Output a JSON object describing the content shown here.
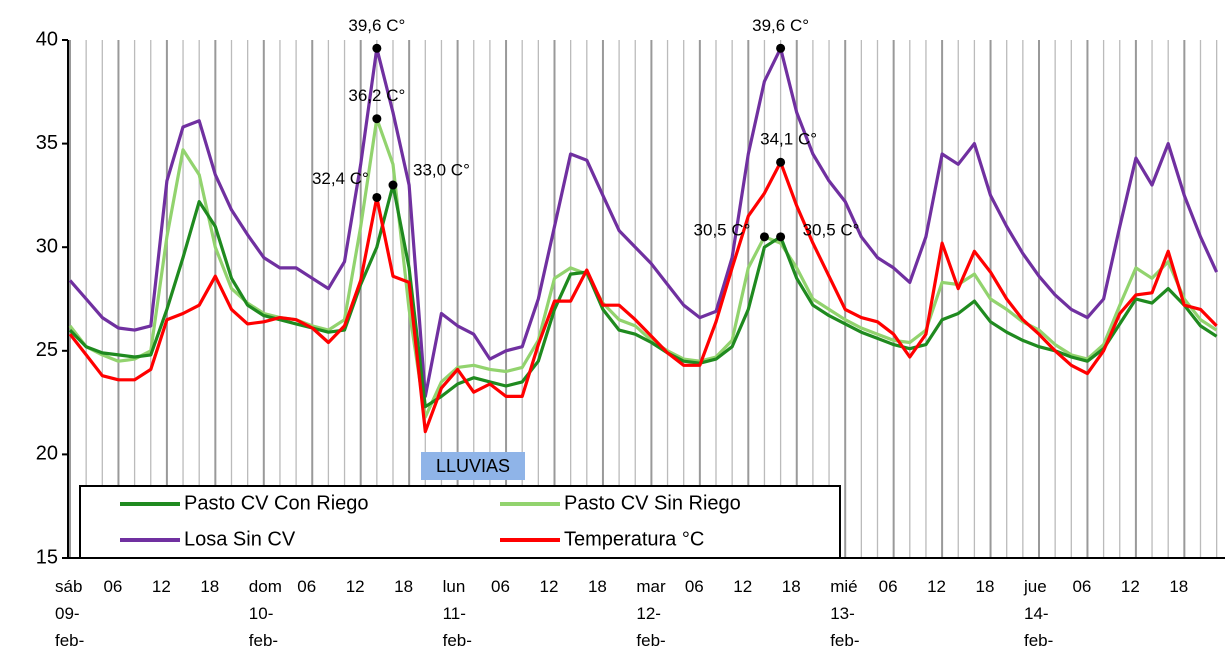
{
  "chart_data": {
    "type": "line",
    "categories": [
      "sáb 09- feb-",
      null,
      null,
      "06",
      null,
      null,
      "12",
      null,
      null,
      "18",
      null,
      null,
      "dom 10- feb-",
      null,
      null,
      "06",
      null,
      null,
      "12",
      null,
      null,
      "18",
      null,
      null,
      "lun 11- feb-",
      null,
      null,
      "06",
      null,
      null,
      "12",
      null,
      null,
      "18",
      null,
      null,
      "mar 12- feb-",
      null,
      null,
      "06",
      null,
      null,
      "12",
      null,
      null,
      "18",
      null,
      null,
      "mié 13- feb-",
      null,
      null,
      "06",
      null,
      null,
      "12",
      null,
      null,
      "18",
      null,
      null,
      "jue 14- feb-",
      null,
      null,
      "06",
      null,
      null,
      "12",
      null,
      null,
      "18",
      null,
      null
    ],
    "series": [
      {
        "name": "Pasto CV Con Riego",
        "color": "#1f8a1f",
        "values": [
          26.0,
          25.2,
          24.9,
          24.8,
          24.7,
          24.8,
          27.0,
          29.5,
          32.2,
          31.0,
          28.5,
          27.2,
          26.7,
          26.5,
          26.3,
          26.1,
          25.9,
          26.0,
          28.2,
          30.0,
          33.0,
          29.0,
          22.3,
          22.8,
          23.4,
          23.7,
          23.5,
          23.3,
          23.5,
          24.5,
          27.0,
          28.7,
          28.8,
          27.0,
          26.0,
          25.8,
          25.4,
          24.9,
          24.5,
          24.4,
          24.6,
          25.2,
          27.0,
          30.0,
          30.5,
          28.5,
          27.2,
          26.7,
          26.3,
          25.9,
          25.6,
          25.3,
          25.1,
          25.3,
          26.5,
          26.8,
          27.4,
          26.4,
          25.9,
          25.5,
          25.2,
          25.0,
          24.7,
          24.5,
          25.1,
          26.3,
          27.5,
          27.3,
          28.0,
          27.2,
          26.2,
          25.7
        ],
        "value_labels": [
          null,
          null,
          null,
          null,
          null,
          null,
          null,
          null,
          null,
          null,
          null,
          null,
          null,
          null,
          null,
          null,
          null,
          null,
          null,
          null,
          "33,0 C°",
          null,
          null,
          null,
          null,
          null,
          null,
          null,
          null,
          null,
          null,
          null,
          null,
          null,
          null,
          null,
          null,
          null,
          null,
          null,
          null,
          null,
          null,
          null,
          "30,5 C°",
          null,
          null,
          null,
          null,
          null,
          null,
          null,
          null,
          null,
          null,
          null,
          null,
          null,
          null,
          null,
          null,
          null,
          null,
          null,
          null,
          null,
          null,
          null,
          null,
          null,
          null,
          null
        ]
      },
      {
        "name": "Pasto CV Sin Riego",
        "color": "#92d36e",
        "values": [
          26.2,
          25.2,
          24.8,
          24.5,
          24.6,
          25.0,
          30.5,
          34.7,
          33.5,
          30.0,
          28.0,
          27.3,
          26.8,
          26.6,
          26.5,
          26.2,
          26.0,
          26.5,
          31.0,
          36.2,
          34.0,
          27.0,
          21.8,
          23.5,
          24.2,
          24.3,
          24.1,
          24.0,
          24.2,
          25.5,
          28.5,
          29.0,
          28.7,
          27.3,
          26.5,
          26.2,
          25.5,
          25.0,
          24.6,
          24.5,
          24.7,
          25.5,
          29.0,
          30.5,
          30.2,
          29.0,
          27.5,
          27.0,
          26.5,
          26.1,
          25.8,
          25.5,
          25.4,
          26.0,
          28.3,
          28.2,
          28.7,
          27.5,
          27.0,
          26.4,
          26.0,
          25.3,
          24.8,
          24.6,
          25.3,
          27.2,
          29.0,
          28.5,
          29.3,
          27.5,
          26.5,
          26.0
        ],
        "value_labels": [
          null,
          null,
          null,
          null,
          null,
          null,
          null,
          null,
          null,
          null,
          null,
          null,
          null,
          null,
          null,
          null,
          null,
          null,
          null,
          "36,2 C°",
          null,
          null,
          null,
          null,
          null,
          null,
          null,
          null,
          null,
          null,
          null,
          null,
          null,
          null,
          null,
          null,
          null,
          null,
          null,
          null,
          null,
          null,
          null,
          "30,5 C°",
          null,
          null,
          null,
          null,
          null,
          null,
          null,
          null,
          null,
          null,
          null,
          null,
          null,
          null,
          null,
          null,
          null,
          null,
          null,
          null,
          null,
          null,
          null,
          null,
          null,
          null,
          null,
          null
        ]
      },
      {
        "name": "Losa Sin CV",
        "color": "#7030a0",
        "values": [
          28.4,
          27.5,
          26.6,
          26.1,
          26.0,
          26.2,
          33.2,
          35.8,
          36.1,
          33.5,
          31.8,
          30.6,
          29.5,
          29.0,
          29.0,
          28.5,
          28.0,
          29.3,
          34.0,
          39.6,
          36.5,
          33.0,
          22.8,
          26.8,
          26.2,
          25.8,
          24.6,
          25.0,
          25.2,
          27.5,
          31.0,
          34.5,
          34.2,
          32.5,
          30.8,
          30.0,
          29.2,
          28.2,
          27.2,
          26.6,
          26.9,
          29.5,
          34.5,
          38.0,
          39.6,
          36.5,
          34.5,
          33.2,
          32.2,
          30.5,
          29.5,
          29.0,
          28.3,
          30.5,
          34.5,
          34.0,
          35.0,
          32.5,
          31.0,
          29.7,
          28.6,
          27.7,
          27.0,
          26.6,
          27.5,
          31.0,
          34.3,
          33.0,
          35.0,
          32.5,
          30.5,
          28.8
        ],
        "value_labels": [
          null,
          null,
          null,
          null,
          null,
          null,
          null,
          null,
          null,
          null,
          null,
          null,
          null,
          null,
          null,
          null,
          null,
          null,
          null,
          "39,6 C°",
          null,
          null,
          null,
          null,
          null,
          null,
          null,
          null,
          null,
          null,
          null,
          null,
          null,
          null,
          null,
          null,
          null,
          null,
          null,
          null,
          null,
          null,
          null,
          null,
          "39,6 C°",
          null,
          null,
          null,
          null,
          null,
          null,
          null,
          null,
          null,
          null,
          null,
          null,
          null,
          null,
          null,
          null,
          null,
          null,
          null,
          null,
          null,
          null,
          null,
          null,
          null,
          null,
          null
        ]
      },
      {
        "name": "Temperatura °C",
        "color": "#ff0000",
        "values": [
          25.8,
          24.8,
          23.8,
          23.6,
          23.6,
          24.1,
          26.5,
          26.8,
          27.2,
          28.6,
          27.0,
          26.3,
          26.4,
          26.6,
          26.5,
          26.1,
          25.4,
          26.2,
          28.4,
          32.4,
          28.6,
          28.3,
          21.1,
          23.2,
          24.1,
          23.0,
          23.4,
          22.8,
          22.8,
          25.3,
          27.4,
          27.4,
          28.9,
          27.2,
          27.2,
          26.5,
          25.7,
          24.9,
          24.3,
          24.3,
          26.4,
          29.0,
          31.5,
          32.6,
          34.1,
          32.0,
          30.2,
          28.6,
          27.0,
          26.6,
          26.4,
          25.8,
          24.7,
          25.8,
          30.2,
          28.0,
          29.8,
          28.8,
          27.5,
          26.5,
          25.8,
          25.0,
          24.3,
          23.9,
          25.0,
          26.8,
          27.7,
          27.8,
          29.8,
          27.2,
          27.0,
          26.2
        ],
        "value_labels": [
          null,
          null,
          null,
          null,
          null,
          null,
          null,
          null,
          null,
          null,
          null,
          null,
          null,
          null,
          null,
          null,
          null,
          null,
          null,
          "32,4 C°",
          null,
          null,
          null,
          null,
          null,
          null,
          null,
          null,
          null,
          null,
          null,
          null,
          null,
          null,
          null,
          null,
          null,
          null,
          null,
          null,
          null,
          null,
          null,
          null,
          "34,1 C°",
          null,
          null,
          null,
          null,
          null,
          null,
          null,
          null,
          null,
          null,
          null,
          null,
          null,
          null,
          null,
          null,
          null,
          null,
          null,
          null,
          null,
          null,
          null,
          null,
          null,
          null,
          null
        ]
      }
    ],
    "annotations": [
      "LLUVIAS"
    ],
    "ylim": [
      15,
      40
    ],
    "yticks": [
      15,
      20,
      25,
      30,
      35,
      40
    ],
    "grid": true,
    "legend": "lower left"
  }
}
